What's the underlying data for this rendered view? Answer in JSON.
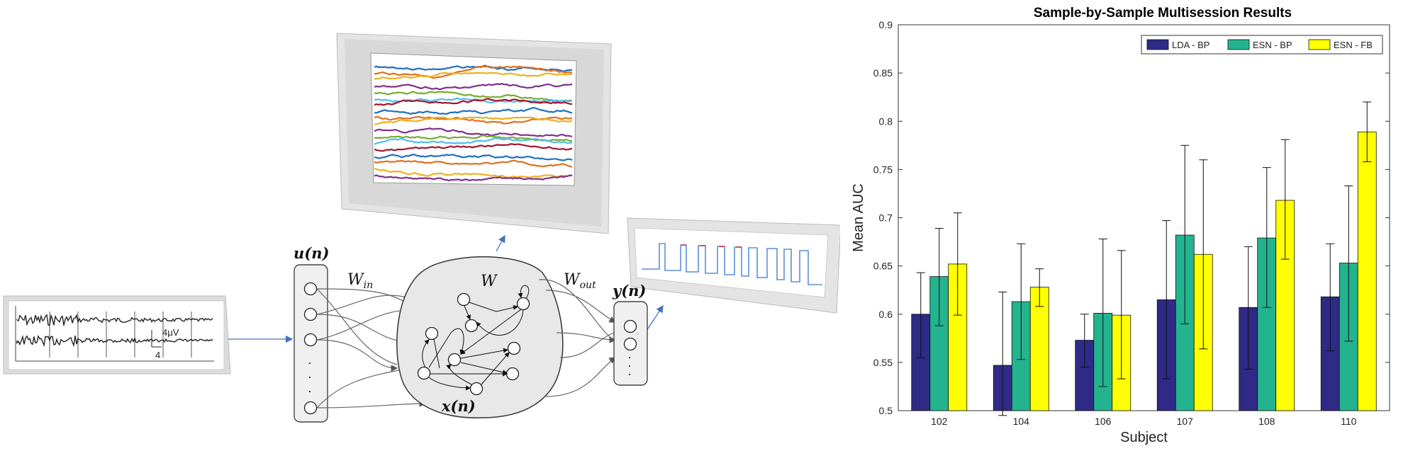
{
  "diagram": {
    "input_label": "u(n)",
    "output_label": "y(n)",
    "state_label": "x(n)",
    "w_in": "W",
    "w_in_sub": "in",
    "w": "W",
    "w_out": "W",
    "w_out_sub": "out",
    "eeg_scale_top": "4µV",
    "eeg_scale_bottom": "4",
    "dots": "·"
  },
  "colors": {
    "lda_bp": "#2e2a86",
    "esn_bp": "#23b38f",
    "esn_fb": "#ffff00",
    "trace_colors": [
      "#1f6fbf",
      "#e07020",
      "#edb120",
      "#7e2f8e",
      "#77ac30",
      "#4dbeee",
      "#a2142f"
    ]
  },
  "chart_data": {
    "type": "bar",
    "title": "Sample-by-Sample Multisession Results",
    "xlabel": "Subject",
    "ylabel": "Mean AUC",
    "ylim": [
      0.5,
      0.9
    ],
    "yticks": [
      "0.5",
      "0.55",
      "0.6",
      "0.65",
      "0.7",
      "0.75",
      "0.8",
      "0.85",
      "0.9"
    ],
    "categories": [
      "102",
      "104",
      "106",
      "107",
      "108",
      "110"
    ],
    "legend_position": "top-right",
    "series": [
      {
        "name": "LDA - BP",
        "values": [
          0.6,
          0.547,
          0.573,
          0.615,
          0.607,
          0.618
        ],
        "err_low": [
          0.555,
          0.495,
          0.545,
          0.533,
          0.543,
          0.562
        ],
        "err_high": [
          0.643,
          0.623,
          0.6,
          0.697,
          0.67,
          0.673
        ]
      },
      {
        "name": "ESN - BP",
        "values": [
          0.639,
          0.613,
          0.601,
          0.682,
          0.679,
          0.653
        ],
        "err_low": [
          0.588,
          0.553,
          0.525,
          0.59,
          0.607,
          0.572
        ],
        "err_high": [
          0.689,
          0.673,
          0.678,
          0.775,
          0.752,
          0.733
        ]
      },
      {
        "name": "ESN - FB",
        "values": [
          0.652,
          0.628,
          0.599,
          0.662,
          0.718,
          0.789
        ],
        "err_low": [
          0.599,
          0.608,
          0.533,
          0.564,
          0.657,
          0.758
        ],
        "err_high": [
          0.705,
          0.647,
          0.666,
          0.76,
          0.781,
          0.82
        ]
      }
    ]
  }
}
